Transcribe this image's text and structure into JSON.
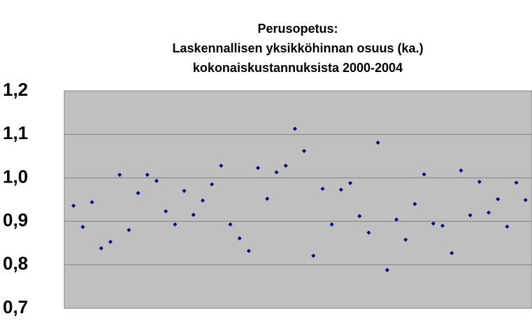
{
  "chart_data": {
    "type": "scatter",
    "title": [
      "Perusopetus:",
      "Laskennallisen yksikköhinnan osuus (ka.)",
      "kokonaiskustannuksista  2000-2004"
    ],
    "x": [
      1,
      2,
      3,
      4,
      5,
      6,
      7,
      8,
      9,
      10,
      11,
      12,
      13,
      14,
      15,
      16,
      17,
      18,
      19,
      20,
      21,
      22,
      23,
      24,
      25,
      26,
      27,
      28,
      29,
      30,
      31,
      32,
      33,
      34,
      35,
      36,
      37,
      38,
      39,
      40,
      41,
      42,
      43,
      44,
      45,
      46,
      47,
      48,
      49,
      50
    ],
    "values": [
      0.936,
      0.887,
      0.944,
      0.838,
      0.853,
      1.007,
      0.88,
      0.965,
      1.007,
      0.993,
      0.923,
      0.893,
      0.97,
      0.915,
      0.948,
      0.985,
      1.028,
      0.893,
      0.861,
      0.832,
      1.023,
      0.952,
      1.013,
      1.028,
      1.113,
      1.062,
      0.821,
      0.975,
      0.893,
      0.973,
      0.988,
      0.912,
      0.874,
      1.081,
      0.788,
      0.904,
      0.858,
      0.94,
      1.008,
      0.895,
      0.89,
      0.827,
      1.017,
      0.914,
      0.991,
      0.92,
      0.951,
      0.888,
      0.989,
      0.949
    ],
    "color": "#000080",
    "xlim": [
      0,
      50.7
    ],
    "ylim": [
      0.7,
      1.2
    ],
    "yticks": [
      {
        "value": 0.7,
        "label": "0,7"
      },
      {
        "value": 0.8,
        "label": "0,8"
      },
      {
        "value": 0.9,
        "label": "0,9"
      },
      {
        "value": 1.0,
        "label": "1,0"
      },
      {
        "value": 1.1,
        "label": "1,1"
      },
      {
        "value": 1.2,
        "label": "1,2"
      }
    ],
    "grid": true
  }
}
